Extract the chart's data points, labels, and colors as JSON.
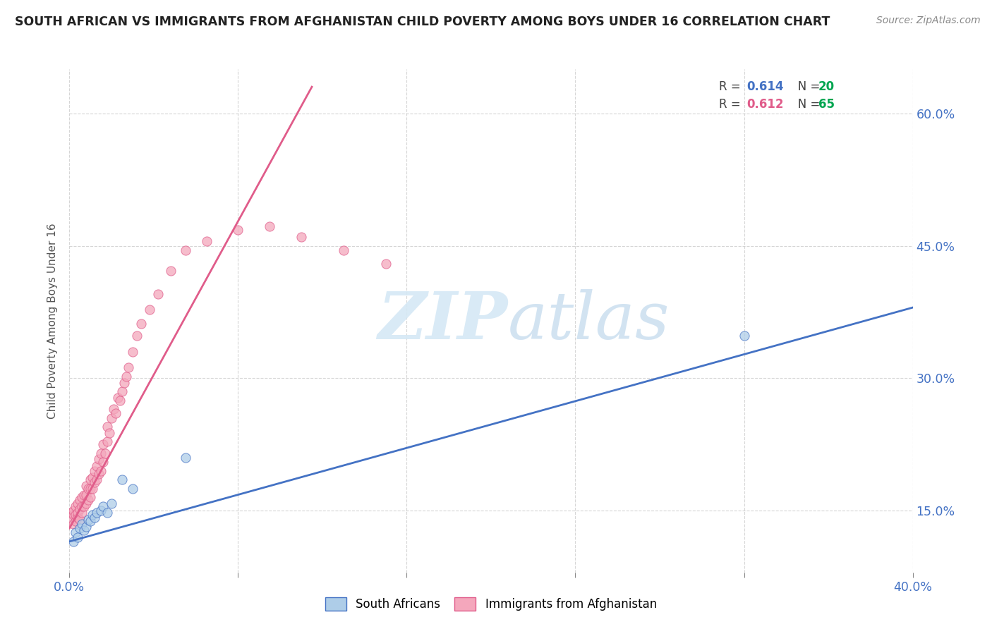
{
  "title": "SOUTH AFRICAN VS IMMIGRANTS FROM AFGHANISTAN CHILD POVERTY AMONG BOYS UNDER 16 CORRELATION CHART",
  "source": "Source: ZipAtlas.com",
  "ylabel": "Child Poverty Among Boys Under 16",
  "xlim": [
    0.0,
    0.4
  ],
  "ylim": [
    0.08,
    0.65
  ],
  "yticks": [
    0.15,
    0.3,
    0.45,
    0.6
  ],
  "ytick_labels": [
    "15.0%",
    "30.0%",
    "45.0%",
    "60.0%"
  ],
  "xticks": [
    0.0,
    0.08,
    0.16,
    0.24,
    0.32,
    0.4
  ],
  "south_african_color": "#aecde8",
  "afghan_color": "#f4a7bc",
  "south_african_line_color": "#4472c4",
  "afghan_line_color": "#e05c8a",
  "tick_color": "#4472c4",
  "watermark_zip": "ZIP",
  "watermark_atlas": "atlas",
  "sa_r": "0.614",
  "sa_n": "20",
  "af_r": "0.612",
  "af_n": "65",
  "south_african_x": [
    0.002,
    0.003,
    0.004,
    0.005,
    0.006,
    0.007,
    0.008,
    0.009,
    0.01,
    0.011,
    0.012,
    0.013,
    0.015,
    0.016,
    0.018,
    0.02,
    0.025,
    0.03,
    0.055,
    0.32
  ],
  "south_african_y": [
    0.115,
    0.125,
    0.12,
    0.13,
    0.135,
    0.128,
    0.132,
    0.14,
    0.138,
    0.145,
    0.142,
    0.148,
    0.15,
    0.155,
    0.148,
    0.158,
    0.185,
    0.175,
    0.21,
    0.348
  ],
  "afghan_x": [
    0.001,
    0.001,
    0.002,
    0.002,
    0.002,
    0.003,
    0.003,
    0.003,
    0.004,
    0.004,
    0.004,
    0.005,
    0.005,
    0.005,
    0.006,
    0.006,
    0.006,
    0.007,
    0.007,
    0.008,
    0.008,
    0.008,
    0.009,
    0.009,
    0.01,
    0.01,
    0.01,
    0.011,
    0.011,
    0.012,
    0.012,
    0.013,
    0.013,
    0.014,
    0.014,
    0.015,
    0.015,
    0.016,
    0.016,
    0.017,
    0.018,
    0.018,
    0.019,
    0.02,
    0.021,
    0.022,
    0.023,
    0.024,
    0.025,
    0.026,
    0.027,
    0.028,
    0.03,
    0.032,
    0.034,
    0.038,
    0.042,
    0.048,
    0.055,
    0.065,
    0.08,
    0.095,
    0.11,
    0.13,
    0.15
  ],
  "afghan_y": [
    0.14,
    0.148,
    0.135,
    0.145,
    0.15,
    0.138,
    0.145,
    0.155,
    0.142,
    0.148,
    0.158,
    0.14,
    0.152,
    0.162,
    0.148,
    0.155,
    0.165,
    0.155,
    0.168,
    0.158,
    0.168,
    0.178,
    0.162,
    0.175,
    0.165,
    0.175,
    0.185,
    0.175,
    0.188,
    0.182,
    0.195,
    0.185,
    0.2,
    0.192,
    0.208,
    0.195,
    0.215,
    0.205,
    0.225,
    0.215,
    0.228,
    0.245,
    0.238,
    0.255,
    0.265,
    0.26,
    0.278,
    0.275,
    0.285,
    0.295,
    0.302,
    0.312,
    0.33,
    0.348,
    0.362,
    0.378,
    0.395,
    0.422,
    0.445,
    0.455,
    0.468,
    0.472,
    0.46,
    0.445,
    0.43
  ],
  "sa_line_x0": 0.0,
  "sa_line_y0": 0.115,
  "sa_line_x1": 0.4,
  "sa_line_y1": 0.38,
  "af_line_x0": 0.0,
  "af_line_y0": 0.13,
  "af_line_x1": 0.115,
  "af_line_y1": 0.63
}
